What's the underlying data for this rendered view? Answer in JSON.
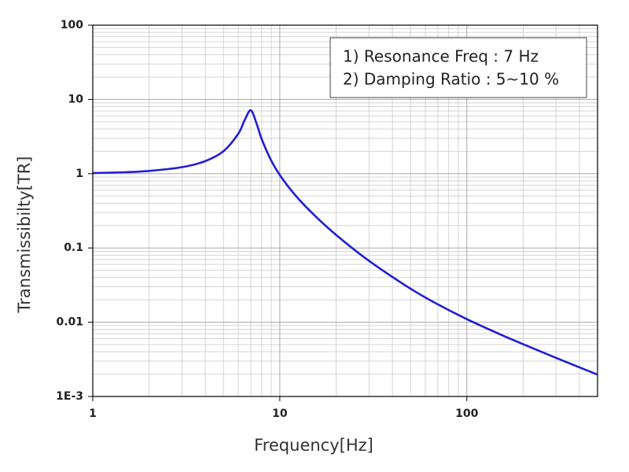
{
  "chart_data": {
    "type": "line",
    "log_x": true,
    "log_y": true,
    "xlabel": "Frequency[Hz]",
    "ylabel": "Transmissibilty[TR]",
    "annotations": [
      "1) Resonance Freq : 7 Hz",
      "2) Damping Ratio : 5~10 %"
    ],
    "x": [
      1,
      1.5,
      2,
      3,
      4,
      5,
      6,
      6.5,
      7,
      7.5,
      8,
      9,
      10,
      12,
      15,
      20,
      30,
      50,
      70,
      100,
      150,
      200,
      300,
      500
    ],
    "values": [
      1.021,
      1.048,
      1.089,
      1.224,
      1.479,
      2.01,
      3.46,
      5.32,
      7.14,
      4.8,
      2.93,
      1.5,
      0.96,
      0.526,
      0.29,
      0.15,
      0.0671,
      0.0283,
      0.0174,
      0.011,
      0.0069,
      0.00506,
      0.00331,
      0.00197
    ],
    "color": "#1f1fd6",
    "xlim": [
      1,
      500
    ],
    "ylim": [
      0.001,
      100
    ],
    "xticks": [
      1,
      10,
      100
    ],
    "yticks": [
      {
        "value": 0.001,
        "label": "1E-3"
      },
      0.01,
      0.1,
      1,
      10,
      100
    ],
    "xminorticks": [
      2,
      3,
      4,
      5,
      6,
      7,
      8,
      9,
      20,
      30,
      40,
      50,
      60,
      70,
      80,
      90,
      200,
      300,
      400
    ],
    "yminorticks": [
      0.002,
      0.003,
      0.004,
      0.005,
      0.006,
      0.007,
      0.008,
      0.009,
      0.02,
      0.03,
      0.04,
      0.05,
      0.06,
      0.07,
      0.08,
      0.09,
      0.2,
      0.3,
      0.4,
      0.5,
      0.6,
      0.7,
      0.8,
      0.9,
      2,
      3,
      4,
      5,
      6,
      7,
      8,
      9,
      20,
      30,
      40,
      50,
      60,
      70,
      80,
      90
    ],
    "grid": true
  }
}
